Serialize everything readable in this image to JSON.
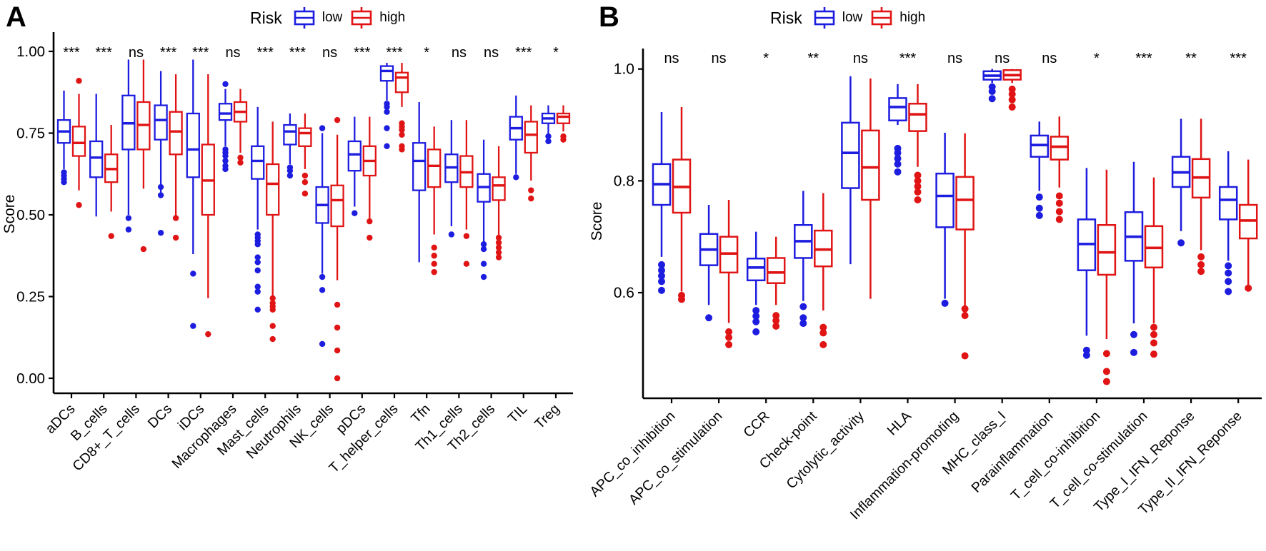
{
  "chart_data": [
    {
      "type": "boxplot",
      "panel_label": "A",
      "ylabel": "Score",
      "ylim": [
        0.0,
        1.0
      ],
      "y_ticks": [
        {
          "value": 0.0,
          "label": "0.00"
        },
        {
          "value": 0.25,
          "label": "0.25"
        },
        {
          "value": 0.5,
          "label": "0.50"
        },
        {
          "value": 0.75,
          "label": "0.75"
        },
        {
          "value": 1.0,
          "label": "1.00"
        }
      ],
      "legend": {
        "title": "Risk",
        "entries": [
          {
            "name": "low",
            "color": "#1d1de0"
          },
          {
            "name": "high",
            "color": "#e01414"
          }
        ]
      },
      "series_names": [
        "low",
        "high"
      ],
      "categories": [
        {
          "label": "aDCs",
          "significance": "***",
          "low": {
            "box": [
              0.64,
              0.72,
              0.755,
              0.79,
              0.88
            ],
            "outliers": [
              0.63,
              0.62,
              0.61,
              0.6
            ]
          },
          "high": {
            "box": [
              0.575,
              0.68,
              0.72,
              0.77,
              0.87
            ],
            "outliers": [
              0.91,
              0.53
            ]
          }
        },
        {
          "label": "B_cells",
          "significance": "***",
          "low": {
            "box": [
              0.495,
              0.615,
              0.675,
              0.725,
              0.87
            ],
            "outliers": []
          },
          "high": {
            "box": [
              0.51,
              0.6,
              0.64,
              0.685,
              0.775
            ],
            "outliers": [
              0.435
            ]
          }
        },
        {
          "label": "CD8+_T_cells",
          "significance": "ns",
          "low": {
            "box": [
              0.5,
              0.7,
              0.78,
              0.865,
              0.975
            ],
            "outliers": [
              0.49,
              0.455
            ]
          },
          "high": {
            "box": [
              0.58,
              0.7,
              0.775,
              0.845,
              0.975
            ],
            "outliers": [
              0.395
            ]
          }
        },
        {
          "label": "DCs",
          "significance": "***",
          "low": {
            "box": [
              0.565,
              0.73,
              0.79,
              0.835,
              0.94
            ],
            "outliers": [
              0.585,
              0.56,
              0.445
            ]
          },
          "high": {
            "box": [
              0.49,
              0.685,
              0.755,
              0.815,
              0.93
            ],
            "outliers": [
              0.49,
              0.43
            ]
          }
        },
        {
          "label": "iDCs",
          "significance": "***",
          "low": {
            "box": [
              0.38,
              0.615,
              0.7,
              0.81,
              0.975
            ],
            "outliers": [
              0.32,
              0.16
            ]
          },
          "high": {
            "box": [
              0.245,
              0.5,
              0.605,
              0.715,
              0.93
            ],
            "outliers": [
              0.135
            ]
          }
        },
        {
          "label": "Macrophages",
          "significance": "ns",
          "low": {
            "box": [
              0.71,
              0.79,
              0.81,
              0.84,
              0.885
            ],
            "outliers": [
              0.9,
              0.7,
              0.69,
              0.68,
              0.665,
              0.65,
              0.64
            ]
          },
          "high": {
            "box": [
              0.69,
              0.785,
              0.815,
              0.845,
              0.885
            ],
            "outliers": [
              0.675,
              0.66
            ]
          }
        },
        {
          "label": "Mast_cells",
          "significance": "***",
          "low": {
            "box": [
              0.455,
              0.61,
              0.665,
              0.71,
              0.83
            ],
            "outliers": [
              0.44,
              0.43,
              0.42,
              0.41,
              0.37,
              0.355,
              0.33,
              0.28,
              0.265,
              0.21
            ]
          },
          "high": {
            "box": [
              0.25,
              0.5,
              0.595,
              0.655,
              0.785
            ],
            "outliers": [
              0.245,
              0.23,
              0.22,
              0.21,
              0.16,
              0.12
            ]
          }
        },
        {
          "label": "Neutrophils",
          "significance": "***",
          "low": {
            "box": [
              0.655,
              0.715,
              0.755,
              0.775,
              0.81
            ],
            "outliers": [
              0.645,
              0.635,
              0.62
            ]
          },
          "high": {
            "box": [
              0.64,
              0.71,
              0.75,
              0.765,
              0.81
            ],
            "outliers": [
              0.62,
              0.6,
              0.565
            ]
          }
        },
        {
          "label": "NK_cells",
          "significance": "ns",
          "low": {
            "box": [
              0.32,
              0.475,
              0.53,
              0.585,
              0.75
            ],
            "outliers": [
              0.765,
              0.31,
              0.27,
              0.105
            ]
          },
          "high": {
            "box": [
              0.3,
              0.465,
              0.545,
              0.59,
              0.745
            ],
            "outliers": [
              0.79,
              0.225,
              0.155,
              0.085,
              0.0
            ]
          }
        },
        {
          "label": "pDCs",
          "significance": "***",
          "low": {
            "box": [
              0.525,
              0.635,
              0.685,
              0.725,
              0.8
            ],
            "outliers": [
              0.505
            ]
          },
          "high": {
            "box": [
              0.485,
              0.62,
              0.665,
              0.71,
              0.8
            ],
            "outliers": [
              0.48,
              0.43
            ]
          }
        },
        {
          "label": "T_helper_cells",
          "significance": "***",
          "low": {
            "box": [
              0.85,
              0.91,
              0.94,
              0.955,
              0.965
            ],
            "outliers": [
              0.84,
              0.83,
              0.815,
              0.765,
              0.71
            ]
          },
          "high": {
            "box": [
              0.83,
              0.875,
              0.92,
              0.935,
              0.965
            ],
            "outliers": [
              0.78,
              0.77,
              0.76,
              0.745,
              0.71,
              0.7
            ]
          }
        },
        {
          "label": "Tfn",
          "significance": "*",
          "low": {
            "box": [
              0.355,
              0.575,
              0.665,
              0.72,
              0.845
            ],
            "outliers": []
          },
          "high": {
            "box": [
              0.44,
              0.585,
              0.65,
              0.7,
              0.77
            ],
            "outliers": [
              0.4,
              0.375,
              0.35,
              0.325
            ]
          }
        },
        {
          "label": "Th1_cells",
          "significance": "ns",
          "low": {
            "box": [
              0.465,
              0.6,
              0.645,
              0.685,
              0.79
            ],
            "outliers": [
              0.44
            ]
          },
          "high": {
            "box": [
              0.455,
              0.585,
              0.63,
              0.68,
              0.79
            ],
            "outliers": [
              0.435,
              0.35
            ]
          }
        },
        {
          "label": "Th2_cells",
          "significance": "ns",
          "low": {
            "box": [
              0.415,
              0.54,
              0.585,
              0.625,
              0.73
            ],
            "outliers": [
              0.41,
              0.395,
              0.35,
              0.31
            ]
          },
          "high": {
            "box": [
              0.435,
              0.545,
              0.59,
              0.615,
              0.71
            ],
            "outliers": [
              0.43,
              0.415,
              0.4,
              0.385,
              0.37
            ]
          }
        },
        {
          "label": "TIL",
          "significance": "***",
          "low": {
            "box": [
              0.625,
              0.73,
              0.765,
              0.8,
              0.865
            ],
            "outliers": [
              0.615
            ]
          },
          "high": {
            "box": [
              0.605,
              0.69,
              0.745,
              0.785,
              0.835
            ],
            "outliers": [
              0.575,
              0.55
            ]
          }
        },
        {
          "label": "Treg",
          "significance": "*",
          "low": {
            "box": [
              0.745,
              0.78,
              0.795,
              0.81,
              0.835
            ],
            "outliers": [
              0.74,
              0.725
            ]
          },
          "high": {
            "box": [
              0.755,
              0.78,
              0.8,
              0.81,
              0.835
            ],
            "outliers": [
              0.74,
              0.73
            ]
          }
        }
      ]
    },
    {
      "type": "boxplot",
      "panel_label": "B",
      "ylabel": "Score",
      "ylim": [
        0.42,
        1.0
      ],
      "y_ticks": [
        {
          "value": 0.6,
          "label": "0.6"
        },
        {
          "value": 0.8,
          "label": "0.8"
        },
        {
          "value": 1.0,
          "label": "1.0"
        }
      ],
      "legend": {
        "title": "Risk",
        "entries": [
          {
            "name": "low",
            "color": "#1d1de0"
          },
          {
            "name": "high",
            "color": "#e01414"
          }
        ]
      },
      "series_names": [
        "low",
        "high"
      ],
      "categories": [
        {
          "label": "APC_co_inhibition",
          "significance": "ns",
          "low": {
            "box": [
              0.664,
              0.757,
              0.794,
              0.83,
              0.923
            ],
            "outliers": [
              0.65,
              0.64,
              0.63,
              0.62,
              0.604
            ]
          },
          "high": {
            "box": [
              0.602,
              0.743,
              0.789,
              0.838,
              0.932
            ],
            "outliers": [
              0.595,
              0.588
            ]
          }
        },
        {
          "label": "APC_co_stimulation",
          "significance": "ns",
          "low": {
            "box": [
              0.578,
              0.649,
              0.677,
              0.705,
              0.757
            ],
            "outliers": [
              0.555
            ]
          },
          "high": {
            "box": [
              0.546,
              0.636,
              0.67,
              0.7,
              0.766
            ],
            "outliers": [
              0.53,
              0.52,
              0.507
            ]
          }
        },
        {
          "label": "CCR",
          "significance": "*",
          "low": {
            "box": [
              0.578,
              0.622,
              0.645,
              0.661,
              0.709
            ],
            "outliers": [
              0.568,
              0.558,
              0.548,
              0.53
            ]
          },
          "high": {
            "box": [
              0.578,
              0.617,
              0.636,
              0.662,
              0.7
            ],
            "outliers": [
              0.559,
              0.55,
              0.54
            ]
          }
        },
        {
          "label": "Check-point",
          "significance": "**",
          "low": {
            "box": [
              0.585,
              0.662,
              0.692,
              0.721,
              0.782
            ],
            "outliers": [
              0.575,
              0.555,
              0.545
            ]
          },
          "high": {
            "box": [
              0.568,
              0.647,
              0.677,
              0.711,
              0.778
            ],
            "outliers": [
              0.538,
              0.528,
              0.507
            ]
          }
        },
        {
          "label": "Cytolytic_activity",
          "significance": "ns",
          "low": {
            "box": [
              0.651,
              0.787,
              0.85,
              0.904,
              0.987
            ],
            "outliers": []
          },
          "high": {
            "box": [
              0.589,
              0.766,
              0.824,
              0.89,
              0.983
            ],
            "outliers": []
          }
        },
        {
          "label": "HLA",
          "significance": "***",
          "low": {
            "box": [
              0.9,
              0.908,
              0.932,
              0.948,
              0.973
            ],
            "outliers": [
              0.858,
              0.85,
              0.84,
              0.83,
              0.816
            ]
          },
          "high": {
            "box": [
              0.825,
              0.889,
              0.919,
              0.938,
              0.973
            ],
            "outliers": [
              0.81,
              0.8,
              0.79,
              0.78,
              0.766
            ]
          }
        },
        {
          "label": "Inflammation-promoting",
          "significance": "ns",
          "low": {
            "box": [
              0.589,
              0.717,
              0.773,
              0.813,
              0.886
            ],
            "outliers": [
              0.581
            ]
          },
          "high": {
            "box": [
              0.574,
              0.713,
              0.766,
              0.807,
              0.885
            ],
            "outliers": [
              0.571,
              0.559,
              0.487
            ]
          }
        },
        {
          "label": "MHC_class_I",
          "significance": "ns",
          "low": {
            "box": [
              0.975,
              0.981,
              0.988,
              0.996,
              1.0
            ],
            "outliers": [
              0.968,
              0.96,
              0.947
            ]
          },
          "high": {
            "box": [
              0.975,
              0.981,
              0.989,
              0.998,
              1.0
            ],
            "outliers": [
              0.964,
              0.955,
              0.945,
              0.932
            ]
          }
        },
        {
          "label": "Parainflammation",
          "significance": "ns",
          "low": {
            "box": [
              0.782,
              0.843,
              0.864,
              0.881,
              0.906
            ],
            "outliers": [
              0.771,
              0.751,
              0.738
            ]
          },
          "high": {
            "box": [
              0.788,
              0.838,
              0.861,
              0.879,
              0.915
            ],
            "outliers": [
              0.773,
              0.76,
              0.745,
              0.731
            ]
          }
        },
        {
          "label": "T_cell_co-inhibition",
          "significance": "*",
          "low": {
            "box": [
              0.523,
              0.64,
              0.687,
              0.731,
              0.823
            ],
            "outliers": [
              0.497,
              0.488
            ]
          },
          "high": {
            "box": [
              0.517,
              0.632,
              0.672,
              0.721,
              0.82
            ],
            "outliers": [
              0.491,
              0.459,
              0.441
            ]
          }
        },
        {
          "label": "T_cell_co-stimulation",
          "significance": "***",
          "low": {
            "box": [
              0.545,
              0.657,
              0.7,
              0.744,
              0.834
            ],
            "outliers": [
              0.525,
              0.493
            ]
          },
          "high": {
            "box": [
              0.545,
              0.645,
              0.68,
              0.719,
              0.806
            ],
            "outliers": [
              0.538,
              0.525,
              0.51,
              0.49
            ]
          }
        },
        {
          "label": "Type_I_IFN_Reponse",
          "significance": "**",
          "low": {
            "box": [
              0.71,
              0.789,
              0.815,
              0.843,
              0.911
            ],
            "outliers": [
              0.689
            ]
          },
          "high": {
            "box": [
              0.676,
              0.77,
              0.806,
              0.839,
              0.911
            ],
            "outliers": [
              0.664,
              0.65,
              0.638
            ]
          }
        },
        {
          "label": "Type_II_IFN_Reponse",
          "significance": "***",
          "low": {
            "box": [
              0.657,
              0.731,
              0.766,
              0.789,
              0.853
            ],
            "outliers": [
              0.648,
              0.635,
              0.62,
              0.602
            ]
          },
          "high": {
            "box": [
              0.612,
              0.697,
              0.729,
              0.757,
              0.838
            ],
            "outliers": [
              0.608
            ]
          }
        }
      ]
    }
  ]
}
